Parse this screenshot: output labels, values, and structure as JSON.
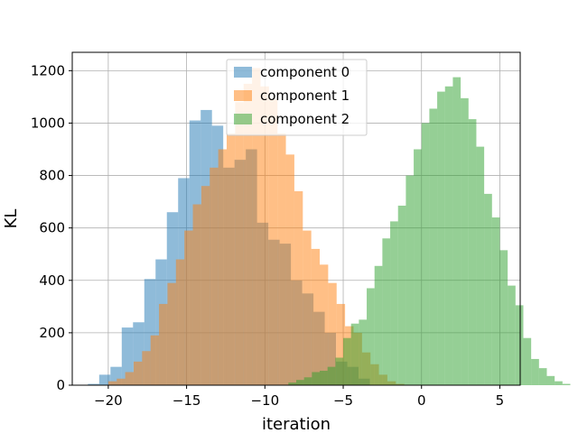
{
  "chart_data": {
    "type": "bar",
    "title": "",
    "xlabel": "iteration",
    "ylabel": "KL",
    "xlim": [
      -22.3,
      6.3
    ],
    "ylim": [
      0,
      1270
    ],
    "xticks": [
      -20,
      -15,
      -10,
      -5,
      0,
      5
    ],
    "yticks": [
      0,
      200,
      400,
      600,
      800,
      1000,
      1200
    ],
    "grid": true,
    "legend_position": "top-center",
    "series": [
      {
        "name": "component 0",
        "color": "#1f77b4",
        "opacity": 0.5,
        "bin_width": 0.72,
        "bin_start": -21.3,
        "counts": [
          5,
          40,
          70,
          220,
          240,
          405,
          480,
          660,
          790,
          1010,
          1050,
          990,
          830,
          860,
          900,
          620,
          555,
          540,
          400,
          350,
          280,
          200,
          90,
          70,
          25
        ]
      },
      {
        "name": "component 1",
        "color": "#ff7f0e",
        "opacity": 0.5,
        "bin_width": 0.54,
        "bin_start": -20.0,
        "counts": [
          15,
          25,
          50,
          90,
          130,
          190,
          310,
          390,
          480,
          590,
          690,
          760,
          830,
          900,
          960,
          1080,
          1150,
          1210,
          1140,
          1090,
          960,
          880,
          740,
          590,
          520,
          460,
          390,
          310,
          225,
          200,
          125,
          80,
          40,
          15,
          5
        ]
      },
      {
        "name": "component 2",
        "color": "#2ca02c",
        "opacity": 0.5,
        "bin_width": 0.5,
        "bin_start": -8.5,
        "counts": [
          10,
          20,
          30,
          50,
          55,
          70,
          105,
          180,
          235,
          250,
          370,
          455,
          560,
          625,
          685,
          800,
          900,
          1000,
          1055,
          1120,
          1140,
          1175,
          1095,
          1015,
          910,
          730,
          640,
          515,
          380,
          305,
          180,
          100,
          65,
          35,
          15,
          5
        ]
      }
    ]
  }
}
